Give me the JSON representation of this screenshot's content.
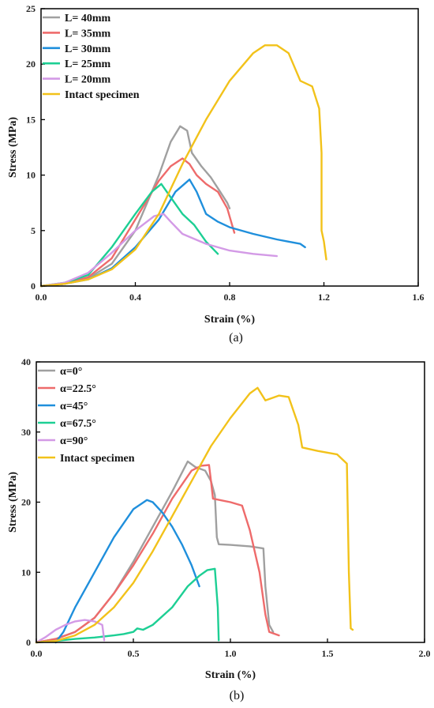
{
  "chart_data": [
    {
      "type": "line",
      "caption": "(a)",
      "xlabel": "Strain (%)",
      "ylabel": "Stress (MPa)",
      "xlim": [
        0,
        1.6
      ],
      "ylim": [
        0,
        25
      ],
      "xticks": [
        0.0,
        0.4,
        0.8,
        1.2,
        1.6
      ],
      "yticks": [
        0,
        5,
        10,
        15,
        20,
        25
      ],
      "xtick_labels": [
        "0.0",
        "0.4",
        "0.8",
        "1.2",
        "1.6"
      ],
      "ytick_labels": [
        "0",
        "5",
        "10",
        "15",
        "20",
        "25"
      ],
      "grid": false,
      "legend_position": "top-left",
      "series": [
        {
          "name": "L= 40mm",
          "color": "#a0a0a0",
          "points": [
            [
              0,
              0
            ],
            [
              0.1,
              0.2
            ],
            [
              0.2,
              0.7
            ],
            [
              0.3,
              2.0
            ],
            [
              0.4,
              5.0
            ],
            [
              0.5,
              10.0
            ],
            [
              0.55,
              13.0
            ],
            [
              0.59,
              14.4
            ],
            [
              0.62,
              14.0
            ],
            [
              0.64,
              12.0
            ],
            [
              0.68,
              10.8
            ],
            [
              0.72,
              9.8
            ],
            [
              0.76,
              8.5
            ],
            [
              0.79,
              7.5
            ],
            [
              0.8,
              7.0
            ]
          ]
        },
        {
          "name": "L= 35mm",
          "color": "#ee6b6b",
          "points": [
            [
              0,
              0
            ],
            [
              0.1,
              0.2
            ],
            [
              0.2,
              0.8
            ],
            [
              0.3,
              2.5
            ],
            [
              0.4,
              6.0
            ],
            [
              0.5,
              9.5
            ],
            [
              0.55,
              10.8
            ],
            [
              0.6,
              11.5
            ],
            [
              0.63,
              11.0
            ],
            [
              0.66,
              10.0
            ],
            [
              0.7,
              9.2
            ],
            [
              0.75,
              8.5
            ],
            [
              0.79,
              7.0
            ],
            [
              0.82,
              4.8
            ]
          ]
        },
        {
          "name": "L= 30mm",
          "color": "#1f8fdc",
          "points": [
            [
              0,
              0
            ],
            [
              0.1,
              0.2
            ],
            [
              0.2,
              0.6
            ],
            [
              0.3,
              1.6
            ],
            [
              0.4,
              3.5
            ],
            [
              0.5,
              6.0
            ],
            [
              0.57,
              8.5
            ],
            [
              0.63,
              9.6
            ],
            [
              0.66,
              8.5
            ],
            [
              0.7,
              6.5
            ],
            [
              0.75,
              5.8
            ],
            [
              0.8,
              5.3
            ],
            [
              0.9,
              4.7
            ],
            [
              1.0,
              4.2
            ],
            [
              1.05,
              4.0
            ],
            [
              1.1,
              3.8
            ],
            [
              1.12,
              3.5
            ]
          ]
        },
        {
          "name": "L= 25mm",
          "color": "#1dcf94",
          "points": [
            [
              0,
              0
            ],
            [
              0.1,
              0.3
            ],
            [
              0.2,
              1.0
            ],
            [
              0.3,
              3.5
            ],
            [
              0.4,
              6.5
            ],
            [
              0.47,
              8.5
            ],
            [
              0.51,
              9.2
            ],
            [
              0.55,
              8.0
            ],
            [
              0.6,
              6.5
            ],
            [
              0.65,
              5.5
            ],
            [
              0.7,
              4.0
            ],
            [
              0.75,
              2.9
            ]
          ]
        },
        {
          "name": "L= 20mm",
          "color": "#d39ae6",
          "points": [
            [
              0,
              0
            ],
            [
              0.1,
              0.3
            ],
            [
              0.2,
              1.2
            ],
            [
              0.3,
              3.0
            ],
            [
              0.4,
              5.0
            ],
            [
              0.48,
              6.3
            ],
            [
              0.52,
              6.5
            ],
            [
              0.55,
              5.8
            ],
            [
              0.6,
              4.7
            ],
            [
              0.7,
              3.8
            ],
            [
              0.8,
              3.2
            ],
            [
              0.9,
              2.9
            ],
            [
              1.0,
              2.7
            ]
          ]
        },
        {
          "name": "Intact specimen",
          "color": "#f2c21a",
          "points": [
            [
              0,
              0
            ],
            [
              0.1,
              0.2
            ],
            [
              0.2,
              0.6
            ],
            [
              0.3,
              1.5
            ],
            [
              0.4,
              3.3
            ],
            [
              0.5,
              6.5
            ],
            [
              0.6,
              11.0
            ],
            [
              0.7,
              15.0
            ],
            [
              0.8,
              18.5
            ],
            [
              0.9,
              21.0
            ],
            [
              0.95,
              21.7
            ],
            [
              1.0,
              21.7
            ],
            [
              1.05,
              21.0
            ],
            [
              1.1,
              18.5
            ],
            [
              1.15,
              18.0
            ],
            [
              1.18,
              16.0
            ],
            [
              1.19,
              12.0
            ],
            [
              1.19,
              5.0
            ],
            [
              1.2,
              4.0
            ],
            [
              1.21,
              2.4
            ]
          ]
        }
      ]
    },
    {
      "type": "line",
      "caption": "(b)",
      "xlabel": "Strain (%)",
      "ylabel": "Stress (MPa)",
      "xlim": [
        0,
        2.0
      ],
      "ylim": [
        0,
        40
      ],
      "xticks": [
        0.0,
        0.5,
        1.0,
        1.5,
        2.0
      ],
      "yticks": [
        0,
        10,
        20,
        30,
        40
      ],
      "xtick_labels": [
        "0.0",
        "0.5",
        "1.0",
        "1.5",
        "2.0"
      ],
      "ytick_labels": [
        "0",
        "10",
        "20",
        "30",
        "40"
      ],
      "grid": false,
      "legend_position": "top-left",
      "series": [
        {
          "name": "α=0°",
          "color": "#a0a0a0",
          "points": [
            [
              0,
              0
            ],
            [
              0.1,
              0.5
            ],
            [
              0.2,
              1.5
            ],
            [
              0.3,
              3.5
            ],
            [
              0.4,
              7.0
            ],
            [
              0.5,
              11.5
            ],
            [
              0.6,
              16.5
            ],
            [
              0.7,
              21.5
            ],
            [
              0.78,
              25.8
            ],
            [
              0.82,
              25.0
            ],
            [
              0.87,
              24.5
            ],
            [
              0.9,
              23.0
            ],
            [
              0.92,
              21.0
            ],
            [
              0.93,
              15.0
            ],
            [
              0.94,
              14.0
            ],
            [
              1.0,
              13.9
            ],
            [
              1.1,
              13.7
            ],
            [
              1.17,
              13.4
            ],
            [
              1.18,
              8.0
            ],
            [
              1.2,
              2.5
            ],
            [
              1.22,
              1.5
            ]
          ]
        },
        {
          "name": "α=22.5°",
          "color": "#ee6b6b",
          "points": [
            [
              0,
              0
            ],
            [
              0.1,
              0.5
            ],
            [
              0.2,
              1.5
            ],
            [
              0.3,
              3.5
            ],
            [
              0.4,
              7.0
            ],
            [
              0.5,
              11.0
            ],
            [
              0.6,
              15.5
            ],
            [
              0.7,
              20.5
            ],
            [
              0.8,
              24.5
            ],
            [
              0.85,
              25.2
            ],
            [
              0.89,
              25.3
            ],
            [
              0.9,
              23.0
            ],
            [
              0.91,
              20.5
            ],
            [
              1.0,
              20.0
            ],
            [
              1.06,
              19.5
            ],
            [
              1.1,
              16.0
            ],
            [
              1.15,
              10.0
            ],
            [
              1.18,
              4.0
            ],
            [
              1.2,
              1.5
            ],
            [
              1.25,
              1.0
            ]
          ]
        },
        {
          "name": "α=45°",
          "color": "#1f8fdc",
          "points": [
            [
              0.1,
              0
            ],
            [
              0.14,
              1.5
            ],
            [
              0.2,
              5.0
            ],
            [
              0.3,
              10.0
            ],
            [
              0.4,
              15.0
            ],
            [
              0.5,
              19.0
            ],
            [
              0.57,
              20.3
            ],
            [
              0.6,
              20.0
            ],
            [
              0.65,
              18.5
            ],
            [
              0.7,
              16.5
            ],
            [
              0.75,
              14.0
            ],
            [
              0.8,
              11.0
            ],
            [
              0.84,
              8.0
            ]
          ]
        },
        {
          "name": "α=67.5°",
          "color": "#1dcf94",
          "points": [
            [
              0,
              0
            ],
            [
              0.1,
              0.2
            ],
            [
              0.2,
              0.5
            ],
            [
              0.3,
              0.7
            ],
            [
              0.4,
              1.0
            ],
            [
              0.45,
              1.2
            ],
            [
              0.5,
              1.5
            ],
            [
              0.52,
              2.0
            ],
            [
              0.55,
              1.8
            ],
            [
              0.6,
              2.5
            ],
            [
              0.7,
              5.0
            ],
            [
              0.78,
              8.0
            ],
            [
              0.84,
              9.5
            ],
            [
              0.88,
              10.3
            ],
            [
              0.92,
              10.5
            ],
            [
              0.935,
              5.0
            ],
            [
              0.94,
              0.3
            ]
          ]
        },
        {
          "name": "α=90°",
          "color": "#d39ae6",
          "points": [
            [
              0,
              0
            ],
            [
              0.05,
              0.8
            ],
            [
              0.1,
              1.8
            ],
            [
              0.15,
              2.5
            ],
            [
              0.2,
              3.0
            ],
            [
              0.25,
              3.2
            ],
            [
              0.3,
              3.0
            ],
            [
              0.34,
              2.5
            ],
            [
              0.35,
              0.3
            ]
          ]
        },
        {
          "name": "Intact specimen",
          "color": "#f2c21a",
          "points": [
            [
              0,
              0
            ],
            [
              0.1,
              0.2
            ],
            [
              0.2,
              1.0
            ],
            [
              0.3,
              2.5
            ],
            [
              0.4,
              5.0
            ],
            [
              0.5,
              8.5
            ],
            [
              0.6,
              13.0
            ],
            [
              0.7,
              18.0
            ],
            [
              0.8,
              23.0
            ],
            [
              0.9,
              28.0
            ],
            [
              1.0,
              32.0
            ],
            [
              1.1,
              35.5
            ],
            [
              1.14,
              36.3
            ],
            [
              1.18,
              34.5
            ],
            [
              1.25,
              35.2
            ],
            [
              1.3,
              35.0
            ],
            [
              1.35,
              31.0
            ],
            [
              1.37,
              27.8
            ],
            [
              1.45,
              27.3
            ],
            [
              1.55,
              26.8
            ],
            [
              1.6,
              25.5
            ],
            [
              1.61,
              10.0
            ],
            [
              1.62,
              2.0
            ],
            [
              1.63,
              1.8
            ]
          ]
        }
      ]
    }
  ]
}
